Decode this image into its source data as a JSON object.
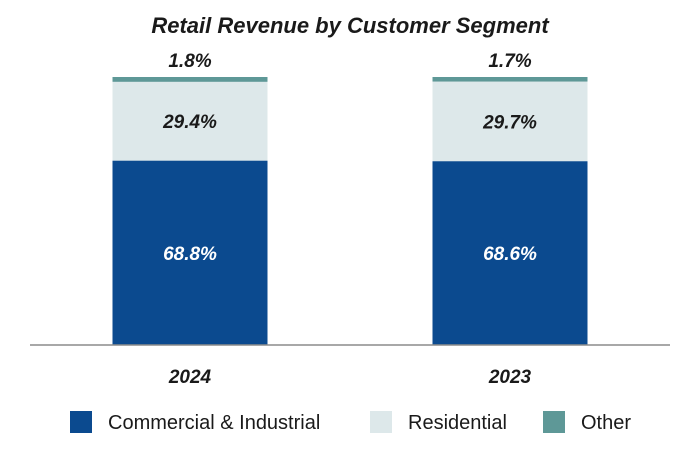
{
  "chart_data": {
    "type": "bar",
    "stacked": true,
    "normalized": true,
    "title": "Retail Revenue by Customer Segment",
    "categories": [
      "2024",
      "2023"
    ],
    "ylim": [
      0,
      100
    ],
    "unit": "%",
    "series": [
      {
        "name": "Commercial & Industrial",
        "values": [
          68.8,
          68.6
        ],
        "labels": [
          "68.8%",
          "68.6%"
        ],
        "color": "#0B4A8F",
        "label_color": "#ffffff"
      },
      {
        "name": "Residential",
        "values": [
          29.4,
          29.7
        ],
        "labels": [
          "29.4%",
          "29.7%"
        ],
        "color": "#DDE8EA",
        "label_color": "#1a1a1a"
      },
      {
        "name": "Other",
        "values": [
          1.8,
          1.7
        ],
        "labels": [
          "1.8%",
          "1.7%"
        ],
        "color": "#5E9897",
        "label_color": "#1a1a1a"
      }
    ],
    "legend_position": "bottom",
    "grid": false
  }
}
